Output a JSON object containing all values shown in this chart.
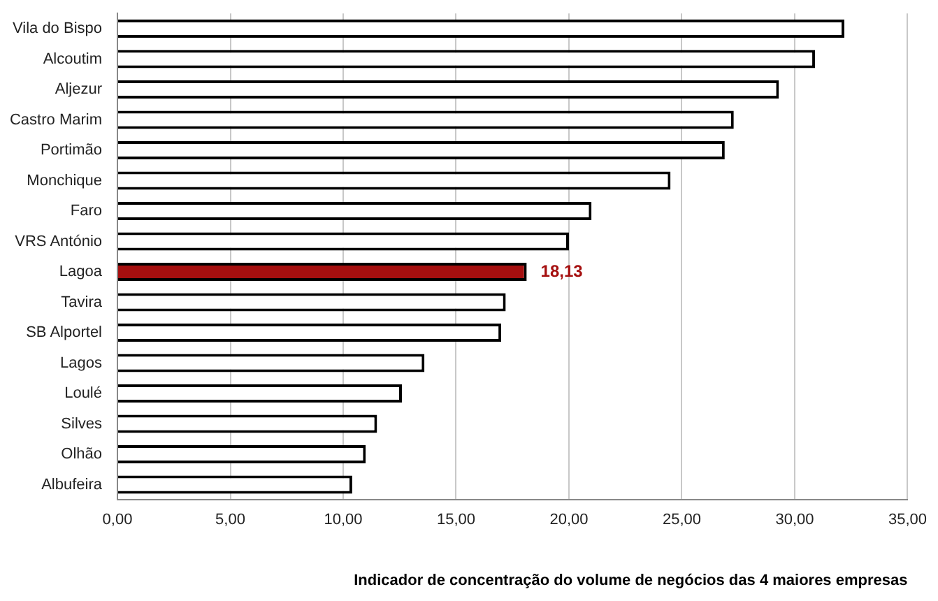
{
  "chart_data": {
    "type": "bar",
    "orientation": "horizontal",
    "xlabel": "Indicador de concentração do volume de negócios das 4 maiores empresas",
    "categories": [
      "Vila do Bispo",
      "Alcoutim",
      "Aljezur",
      "Castro Marim",
      "Portimão",
      "Monchique",
      "Faro",
      "VRS António",
      "Lagoa",
      "Tavira",
      "SB Alportel",
      "Lagos",
      "Loulé",
      "Silves",
      "Olhão",
      "Albufeira"
    ],
    "values": [
      32.2,
      30.9,
      29.3,
      27.3,
      26.9,
      24.5,
      21.0,
      20.0,
      18.13,
      17.2,
      17.0,
      13.6,
      12.6,
      11.5,
      11.0,
      10.4
    ],
    "colors": [
      "#ffffff",
      "#ffffff",
      "#ffffff",
      "#ffffff",
      "#ffffff",
      "#ffffff",
      "#ffffff",
      "#ffffff",
      "#a50f0f",
      "#ffffff",
      "#ffffff",
      "#ffffff",
      "#ffffff",
      "#ffffff",
      "#ffffff",
      "#ffffff"
    ],
    "value_labels": [
      null,
      null,
      null,
      null,
      null,
      null,
      null,
      null,
      "18,13",
      null,
      null,
      null,
      null,
      null,
      null,
      null
    ],
    "xlim": [
      0,
      35
    ],
    "xticks": [
      {
        "value": 0,
        "label": "0,00"
      },
      {
        "value": 5,
        "label": "5,00"
      },
      {
        "value": 10,
        "label": "10,00"
      },
      {
        "value": 15,
        "label": "15,00"
      },
      {
        "value": 20,
        "label": "20,00"
      },
      {
        "value": 25,
        "label": "25,00"
      },
      {
        "value": 30,
        "label": "30,00"
      },
      {
        "value": 35,
        "label": "35,00"
      }
    ],
    "grid": "x"
  }
}
